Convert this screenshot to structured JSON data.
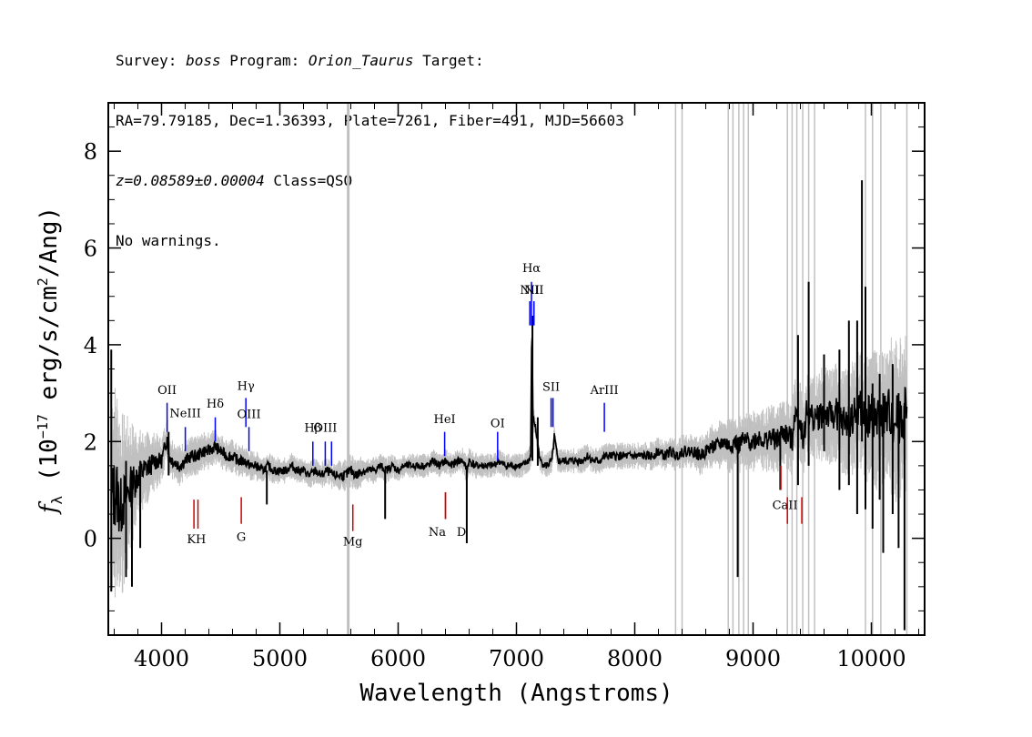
{
  "header": {
    "line1_prefix": "Survey: ",
    "survey": "boss",
    "line1_mid": " Program: ",
    "program": "Orion_Taurus",
    "line1_suffix": " Target:",
    "line2": "RA=79.79185, Dec=1.36393, Plate=7261, Fiber=491, MJD=56603",
    "redshift": "z=0.08589±0.00004",
    "class_text": " Class=QSO",
    "line4": "No warnings."
  },
  "colors": {
    "flux": "#000000",
    "error": "#c0c0c0",
    "emission": "#0000ff",
    "absorption": "#d00000",
    "axes": "#000000"
  },
  "chart_data": {
    "type": "line",
    "title": "",
    "xlabel": "Wavelength (Angstroms)",
    "ylabel": "f_λ (10^-17 erg/s/cm^2/Ang)",
    "ylabel_parts": {
      "f": "f",
      "sub": "λ",
      "pre": " (10",
      "exp1": "−17",
      "mid": " erg/s/cm",
      "exp2": "2",
      "post": "/Ang)"
    },
    "xlim": [
      3550,
      10450
    ],
    "ylim": [
      -2,
      9
    ],
    "x_ticks": [
      4000,
      5000,
      6000,
      7000,
      8000,
      9000,
      10000
    ],
    "x_tick_labels": [
      "4000",
      "5000",
      "6000",
      "7000",
      "8000",
      "9000",
      "10000"
    ],
    "y_ticks": [
      0,
      2,
      4,
      6,
      8
    ],
    "y_tick_labels": [
      "0",
      "2",
      "4",
      "6",
      "8"
    ],
    "grid": false,
    "series": [
      {
        "role": "flux",
        "x": [
          3580,
          3620,
          3650,
          3700,
          3750,
          3800,
          3850,
          3900,
          3950,
          4000,
          4050,
          4060,
          4100,
          4150,
          4200,
          4250,
          4300,
          4350,
          4400,
          4450,
          4500,
          4550,
          4600,
          4650,
          4700,
          4750,
          4800,
          4850,
          4900,
          4950,
          5000,
          5050,
          5100,
          5150,
          5200,
          5250,
          5300,
          5350,
          5400,
          5450,
          5500,
          5550,
          5600,
          5650,
          5700,
          5750,
          5800,
          5850,
          5900,
          5950,
          6000,
          6050,
          6100,
          6150,
          6200,
          6250,
          6300,
          6350,
          6400,
          6450,
          6500,
          6550,
          6580,
          6600,
          6650,
          6700,
          6750,
          6800,
          6850,
          6900,
          6950,
          7000,
          7050,
          7100,
          7120,
          7130,
          7140,
          7160,
          7200,
          7250,
          7300,
          7320,
          7350,
          7400,
          7450,
          7500,
          7550,
          7600,
          7650,
          7700,
          7750,
          7800,
          7850,
          7900,
          7950,
          8000,
          8050,
          8100,
          8150,
          8200,
          8250,
          8300,
          8350,
          8400,
          8450,
          8500,
          8550,
          8600,
          8650,
          8700,
          8750,
          8800,
          8850,
          8880,
          8900,
          8950,
          9000,
          9050,
          9100,
          9150,
          9200,
          9250,
          9300,
          9330,
          9350,
          9400,
          9430,
          9450,
          9500,
          9550,
          9600,
          9650,
          9700,
          9750,
          9800,
          9850,
          9900,
          9920,
          9950,
          10000,
          10050,
          10100,
          10150,
          10200,
          10250,
          10300
        ],
        "y": [
          0.8,
          1.0,
          0.6,
          0.9,
          1.1,
          1.3,
          1.4,
          1.5,
          1.6,
          1.6,
          2.1,
          1.7,
          1.6,
          1.5,
          1.6,
          1.7,
          1.7,
          1.8,
          1.8,
          1.9,
          1.8,
          1.7,
          1.7,
          1.6,
          1.6,
          1.5,
          1.5,
          1.4,
          1.5,
          1.4,
          1.4,
          1.4,
          1.5,
          1.4,
          1.4,
          1.3,
          1.4,
          1.3,
          1.4,
          1.3,
          1.3,
          1.3,
          1.4,
          1.3,
          1.4,
          1.4,
          1.4,
          1.5,
          1.4,
          1.5,
          1.4,
          1.5,
          1.5,
          1.5,
          1.5,
          1.5,
          1.6,
          1.5,
          1.6,
          1.5,
          1.6,
          1.6,
          1.4,
          1.6,
          1.5,
          1.5,
          1.5,
          1.5,
          1.6,
          1.5,
          1.5,
          1.5,
          1.5,
          1.6,
          1.7,
          4.5,
          2.5,
          2.3,
          1.6,
          1.5,
          1.6,
          2.1,
          1.6,
          1.6,
          1.6,
          1.6,
          1.6,
          1.7,
          1.6,
          1.6,
          1.7,
          1.7,
          1.7,
          1.7,
          1.7,
          1.7,
          1.7,
          1.7,
          1.7,
          1.8,
          1.7,
          1.8,
          1.7,
          1.8,
          1.8,
          1.8,
          1.7,
          1.8,
          1.9,
          1.9,
          2.0,
          1.9,
          2.0,
          1.9,
          2.0,
          2.0,
          2.0,
          2.1,
          2.0,
          2.1,
          2.0,
          2.2,
          2.1,
          2.0,
          2.6,
          2.4,
          2.0,
          2.6,
          2.5,
          2.5,
          2.6,
          2.5,
          2.6,
          2.4,
          2.4,
          2.5,
          2.7,
          2.6,
          2.4,
          2.6,
          2.4,
          2.5,
          2.6,
          2.4,
          2.5,
          2.6
        ]
      },
      {
        "role": "error-envelope",
        "x": [
          3580,
          3700,
          3800,
          3900,
          4000,
          4200,
          4400,
          4600,
          4800,
          5000,
          5200,
          5400,
          5600,
          5800,
          6000,
          6200,
          6400,
          6600,
          6800,
          7000,
          7200,
          7400,
          7600,
          7800,
          8000,
          8200,
          8400,
          8600,
          8800,
          9000,
          9200,
          9400,
          9600,
          9800,
          10000,
          10200,
          10300
        ],
        "half_width": [
          1.8,
          1.2,
          0.7,
          0.5,
          0.35,
          0.3,
          0.28,
          0.25,
          0.22,
          0.2,
          0.2,
          0.2,
          0.25,
          0.2,
          0.18,
          0.18,
          0.18,
          0.2,
          0.18,
          0.18,
          0.18,
          0.18,
          0.2,
          0.2,
          0.2,
          0.22,
          0.25,
          0.3,
          0.4,
          0.45,
          0.5,
          0.6,
          0.7,
          0.8,
          1.0,
          1.2,
          1.4
        ]
      }
    ],
    "masked_wavelengths": [
      5578,
      8345,
      8400,
      8790,
      8830,
      8880,
      8920,
      8960,
      9290,
      9330,
      9370,
      9420,
      9470,
      9520,
      9950,
      10010,
      10080,
      10300
    ],
    "spikes": [
      {
        "x": 3575,
        "top": 3.9,
        "bottom": -1.1
      },
      {
        "x": 3700,
        "top": 1.6,
        "bottom": -0.8
      },
      {
        "x": 3750,
        "top": 1.4,
        "bottom": -1.0
      },
      {
        "x": 3820,
        "top": 1.6,
        "bottom": -0.2
      },
      {
        "x": 4060,
        "top": 2.2,
        "bottom": 1.3
      },
      {
        "x": 4890,
        "top": 1.4,
        "bottom": 0.7
      },
      {
        "x": 5890,
        "top": 1.4,
        "bottom": 0.4
      },
      {
        "x": 6580,
        "top": 1.5,
        "bottom": -0.1
      },
      {
        "x": 7135,
        "top": 4.6,
        "bottom": 1.6
      },
      {
        "x": 7180,
        "top": 2.5,
        "bottom": 1.5
      },
      {
        "x": 8870,
        "top": 2.0,
        "bottom": -0.8
      },
      {
        "x": 9230,
        "top": 2.2,
        "bottom": 1.0
      },
      {
        "x": 9380,
        "top": 4.2,
        "bottom": 1.1
      },
      {
        "x": 9470,
        "top": 5.3,
        "bottom": 1.5
      },
      {
        "x": 9600,
        "top": 3.8,
        "bottom": 1.8
      },
      {
        "x": 9730,
        "top": 3.9,
        "bottom": 1.0
      },
      {
        "x": 9810,
        "top": 4.5,
        "bottom": 1.1
      },
      {
        "x": 9880,
        "top": 4.5,
        "bottom": 0.5
      },
      {
        "x": 9920,
        "top": 7.4,
        "bottom": 2.0
      },
      {
        "x": 9950,
        "top": 5.2,
        "bottom": 0.6
      },
      {
        "x": 10010,
        "top": 3.2,
        "bottom": 0.2
      },
      {
        "x": 10070,
        "top": 3.4,
        "bottom": 0.8
      },
      {
        "x": 10100,
        "top": 3.0,
        "bottom": -0.3
      },
      {
        "x": 10180,
        "top": 3.6,
        "bottom": 0.5
      },
      {
        "x": 10230,
        "top": 3.0,
        "bottom": -0.2
      },
      {
        "x": 10280,
        "top": 2.8,
        "bottom": -1.9
      }
    ],
    "emission_lines": [
      {
        "name": "OII",
        "x": 4047,
        "y0": 2.2,
        "y1": 2.8,
        "label_y": 2.98
      },
      {
        "name": "NeIII",
        "x": 4201,
        "y0": 1.8,
        "y1": 2.3,
        "label_y": 2.5
      },
      {
        "name": "Hδ",
        "x": 4454,
        "y0": 2.0,
        "y1": 2.5,
        "label_y": 2.7
      },
      {
        "name": "Hγ",
        "x": 4713,
        "y0": 2.3,
        "y1": 2.9,
        "label_y": 3.07
      },
      {
        "name": "OIII",
        "x": 4739,
        "y0": 1.8,
        "y1": 2.3,
        "label_y": 2.48
      },
      {
        "name": "Hβ",
        "x": 5279,
        "y0": 1.5,
        "y1": 2.0,
        "label_y": 2.2
      },
      {
        "name": "OIII",
        "x": 5384,
        "y0": 1.5,
        "y1": 2.0,
        "label_y": 2.2
      },
      {
        "name": "",
        "x": 5437,
        "y0": 1.5,
        "y1": 2.0,
        "label_y": 2.2
      },
      {
        "name": "HeI",
        "x": 6393,
        "y0": 1.7,
        "y1": 2.2,
        "label_y": 2.38
      },
      {
        "name": "OI",
        "x": 6841,
        "y0": 1.6,
        "y1": 2.2,
        "label_y": 2.3
      },
      {
        "name": "NII",
        "x": 7113,
        "y0": 4.4,
        "y1": 4.9,
        "label_y": 5.05
      },
      {
        "name": "Hα",
        "x": 7127,
        "y0": 4.4,
        "y1": 5.3,
        "label_y": 5.5
      },
      {
        "name": "NII",
        "x": 7148,
        "y0": 4.4,
        "y1": 4.9,
        "label_y": 5.05
      },
      {
        "name": "SII",
        "x": 7293,
        "y0": 2.3,
        "y1": 2.9,
        "label_y": 3.05
      },
      {
        "name": "",
        "x": 7309,
        "y0": 2.3,
        "y1": 2.9,
        "label_y": 3.05
      },
      {
        "name": "ArIII",
        "x": 7743,
        "y0": 2.2,
        "y1": 2.8,
        "label_y": 2.98
      }
    ],
    "absorption_lines": [
      {
        "name": "KH",
        "x": 4274,
        "y0": 0.2,
        "y1": 0.8,
        "label_y": -0.1,
        "label_x": 4295
      },
      {
        "name": "",
        "x": 4308,
        "y0": 0.2,
        "y1": 0.8
      },
      {
        "name": "G",
        "x": 4674,
        "y0": 0.3,
        "y1": 0.85,
        "label_y": -0.05
      },
      {
        "name": "Mg",
        "x": 5617,
        "y0": 0.15,
        "y1": 0.7,
        "label_y": -0.15
      },
      {
        "name": "Na",
        "x": 6400,
        "y0": 0.4,
        "y1": 0.95,
        "label_y": 0.05,
        "label_x": 6330
      },
      {
        "name": "D",
        "x": 6400,
        "y0": 0.4,
        "y1": 0.95,
        "label_y": 0.05,
        "label_x": 6535
      },
      {
        "name": "CaII",
        "x": 9235,
        "y0": 1.0,
        "y1": 1.5,
        "label_y": 0.6,
        "label_x": 9270
      },
      {
        "name": "",
        "x": 9290,
        "y0": 0.3,
        "y1": 0.85
      },
      {
        "name": "",
        "x": 9412,
        "y0": 0.3,
        "y1": 0.85
      }
    ]
  }
}
